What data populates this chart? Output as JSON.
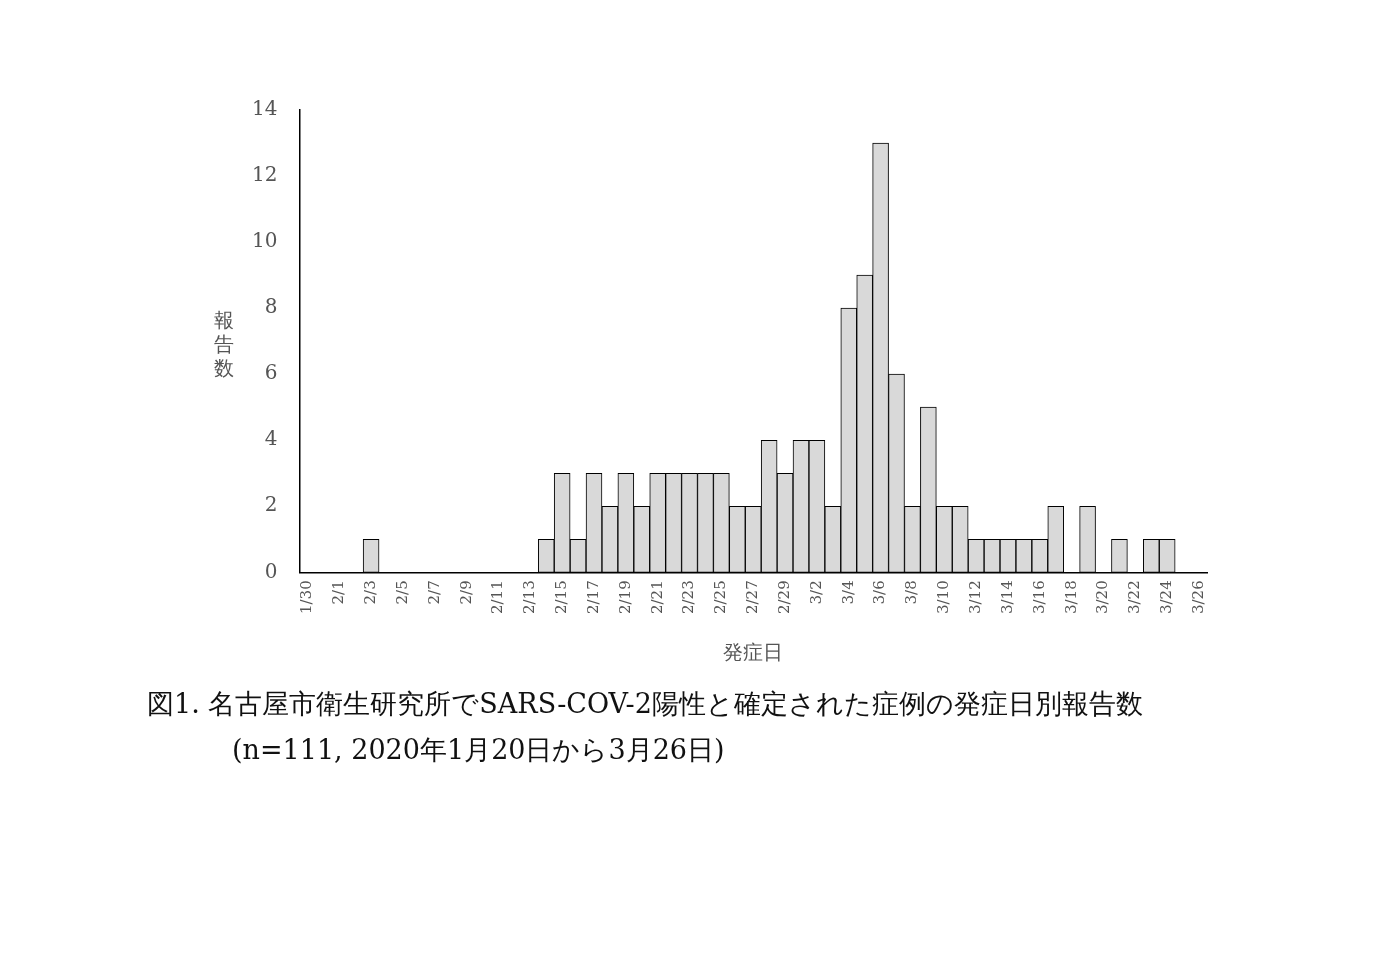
{
  "chart_data": {
    "type": "bar",
    "title": "図1. 名古屋市衛生研究所でSARS-COV-2陽性と確定された症例の発症日別報告数",
    "subtitle": "(n=111, 2020年1月20日から3月26日)",
    "xlabel": "発症日",
    "ylabel": "報告数",
    "categories": [
      "1/30",
      null,
      "2/1",
      null,
      "2/3",
      null,
      "2/5",
      null,
      "2/7",
      null,
      "2/9",
      null,
      "2/11",
      null,
      "2/13",
      null,
      "2/15",
      null,
      "2/17",
      null,
      "2/19",
      null,
      "2/21",
      null,
      "2/23",
      null,
      "2/25",
      null,
      "2/27",
      null,
      "2/29",
      null,
      "3/2",
      null,
      "3/4",
      null,
      "3/6",
      null,
      "3/8",
      null,
      "3/10",
      null,
      "3/12",
      null,
      "3/14",
      null,
      "3/16",
      null,
      "3/18",
      null,
      "3/20",
      null,
      "3/22",
      null,
      "3/24",
      null,
      "3/26"
    ],
    "values": [
      0,
      0,
      0,
      0,
      1,
      0,
      0,
      0,
      0,
      0,
      0,
      0,
      0,
      0,
      0,
      1,
      3,
      1,
      3,
      2,
      3,
      2,
      3,
      3,
      3,
      3,
      3,
      2,
      2,
      4,
      3,
      4,
      4,
      2,
      8,
      9,
      13,
      6,
      2,
      5,
      2,
      2,
      1,
      1,
      1,
      1,
      1,
      2,
      0,
      2,
      0,
      1,
      0,
      1,
      1,
      0,
      0
    ],
    "color": "#d9d9d9",
    "ylim": [
      0,
      14
    ],
    "yticks": [
      0,
      2,
      4,
      6,
      8,
      10,
      12,
      14
    ],
    "grid": false,
    "legend": false
  }
}
